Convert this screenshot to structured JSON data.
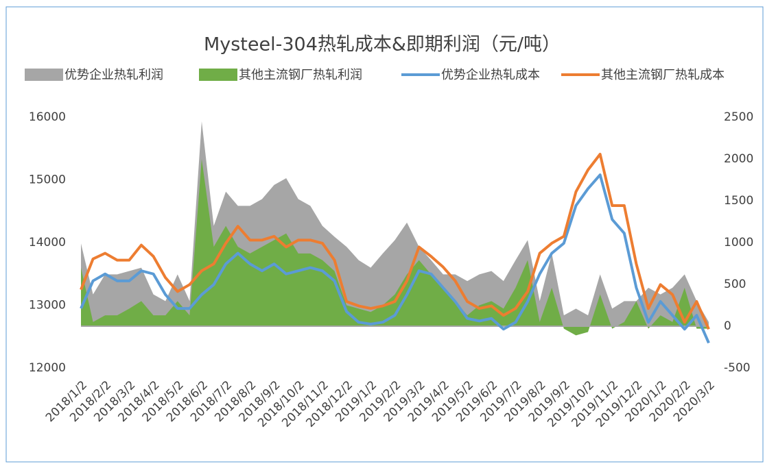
{
  "chart_data": {
    "type": "combo",
    "title": "Mysteel-304热轧成本&即期利润（元/吨）",
    "categories": [
      "2018/1/2",
      null,
      "2018/2/2",
      null,
      "2018/3/2",
      null,
      "2018/4/2",
      null,
      "2018/5/2",
      null,
      "2018/6/2",
      null,
      "2018/7/2",
      null,
      "2018/8/2",
      null,
      "2018/9/2",
      null,
      "2018/10/2",
      null,
      "2018/11/2",
      null,
      "2018/12/2",
      null,
      "2019/1/2",
      null,
      "2019/2/2",
      null,
      "2019/3/2",
      null,
      "2019/4/2",
      null,
      "2019/5/2",
      null,
      "2019/6/2",
      null,
      "2019/7/2",
      null,
      "2019/8/2",
      null,
      "2019/9/2",
      null,
      "2019/10/2",
      null,
      "2019/11/2",
      null,
      "2019/12/2",
      null,
      "2020/1/2",
      null,
      "2020/2/2",
      null,
      "2020/3/2"
    ],
    "series": [
      {
        "name": "优势企业热轧利润",
        "kind": "area",
        "axis": "y2",
        "color": "#a6a6a6",
        "values": [
          990,
          380,
          620,
          620,
          660,
          700,
          380,
          300,
          620,
          300,
          2450,
          1200,
          1610,
          1440,
          1440,
          1520,
          1690,
          1770,
          1520,
          1440,
          1200,
          1070,
          950,
          790,
          700,
          870,
          1030,
          1240,
          950,
          790,
          620,
          620,
          540,
          620,
          660,
          540,
          790,
          1030,
          300,
          870,
          130,
          210,
          130,
          620,
          210,
          300,
          300,
          460,
          380,
          460,
          620,
          300,
          50
        ]
      },
      {
        "name": "其他主流钢厂热轧利润",
        "kind": "area",
        "axis": "y2",
        "color": "#70ad47",
        "values": [
          700,
          50,
          130,
          130,
          210,
          300,
          130,
          130,
          300,
          130,
          2000,
          950,
          1200,
          950,
          870,
          950,
          1030,
          1110,
          870,
          870,
          790,
          660,
          250,
          210,
          170,
          250,
          380,
          620,
          790,
          620,
          460,
          300,
          130,
          250,
          300,
          210,
          460,
          790,
          50,
          460,
          -30,
          -110,
          -70,
          380,
          -30,
          50,
          300,
          -30,
          130,
          50,
          460,
          -30,
          -30
        ]
      },
      {
        "name": "优势企业热轧成本",
        "kind": "line",
        "axis": "y",
        "color": "#5b9bd5",
        "values": [
          12950,
          13390,
          13500,
          13390,
          13390,
          13550,
          13500,
          13170,
          12950,
          12950,
          13170,
          13330,
          13660,
          13830,
          13660,
          13550,
          13660,
          13500,
          13550,
          13600,
          13550,
          13390,
          12900,
          12730,
          12700,
          12730,
          12840,
          13170,
          13550,
          13500,
          13280,
          13060,
          12790,
          12750,
          12790,
          12620,
          12730,
          13060,
          13500,
          13830,
          13990,
          14590,
          14860,
          15080,
          14370,
          14150,
          13280,
          12730,
          13060,
          12840,
          12620,
          12840,
          12400
        ]
      },
      {
        "name": "其他主流钢厂热轧成本",
        "kind": "line",
        "axis": "y",
        "color": "#ed7d31",
        "values": [
          13250,
          13740,
          13830,
          13720,
          13720,
          13960,
          13780,
          13440,
          13220,
          13330,
          13550,
          13660,
          13990,
          14260,
          14040,
          14040,
          14100,
          13930,
          14040,
          14040,
          13990,
          13720,
          13060,
          12990,
          12950,
          12990,
          13060,
          13390,
          13930,
          13780,
          13610,
          13390,
          13060,
          12950,
          12990,
          12840,
          12950,
          13220,
          13830,
          13990,
          14100,
          14810,
          15160,
          15410,
          14590,
          14590,
          13660,
          12950,
          13330,
          13170,
          12730,
          13060,
          12620
        ]
      }
    ],
    "ylim": [
      12000,
      16000
    ],
    "yticks": [
      12000,
      13000,
      14000,
      15000,
      16000
    ],
    "y2lim": [
      -500,
      2500
    ],
    "y2ticks": [
      -500,
      0,
      500,
      1000,
      1500,
      2000,
      2500
    ],
    "legend": "top"
  }
}
